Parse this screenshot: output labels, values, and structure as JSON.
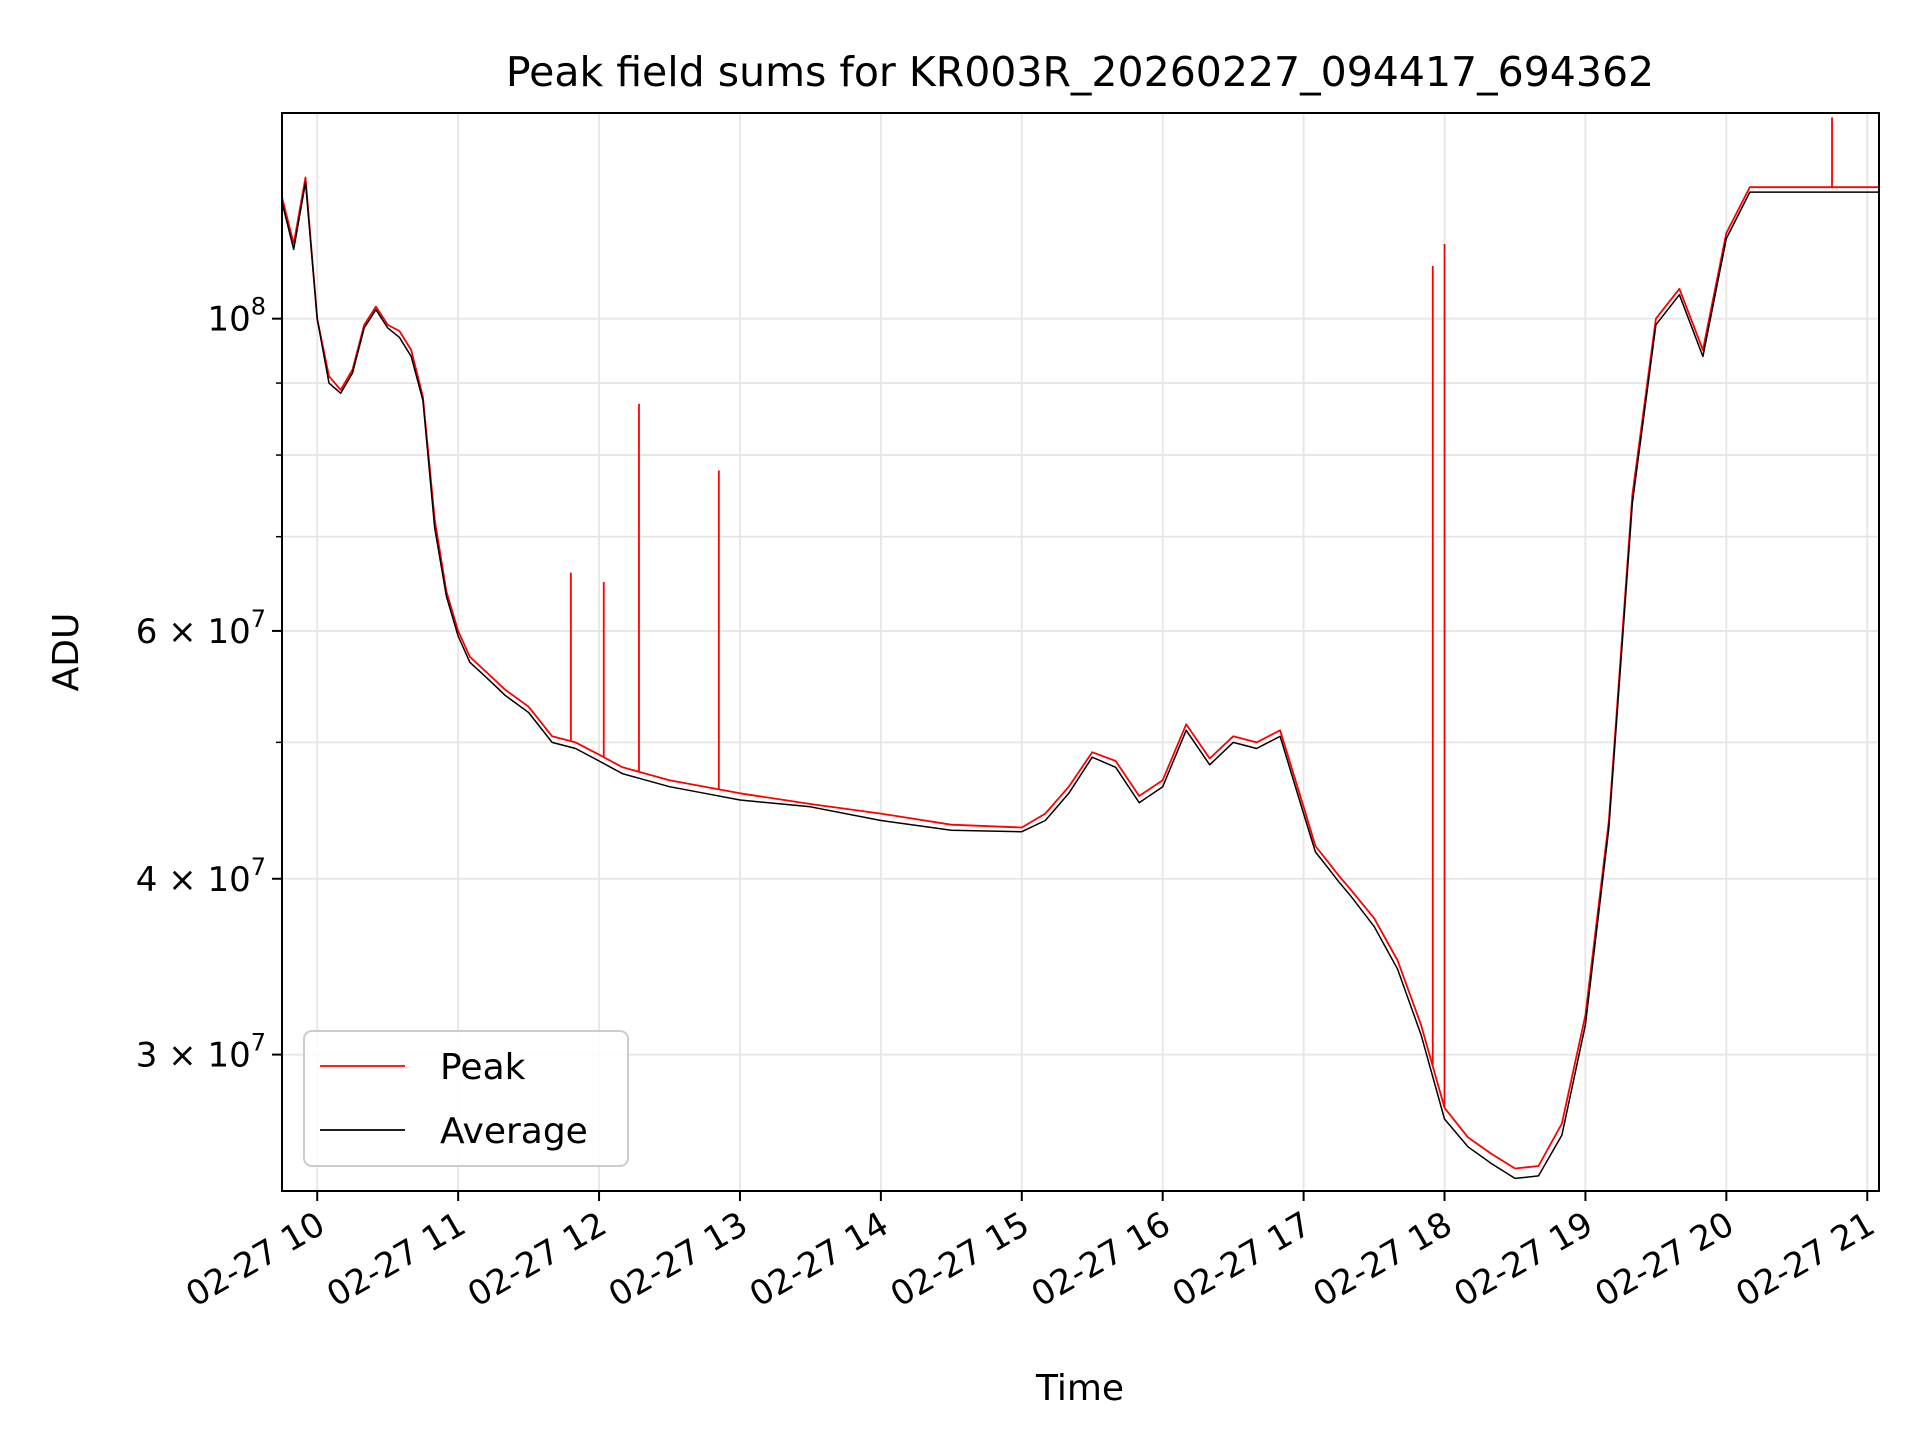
{
  "chart_data": {
    "type": "line",
    "title": "Peak field sums for KR003R_20260227_094417_694362",
    "xlabel": "Time",
    "ylabel": "ADU",
    "yscale": "log",
    "xlim": [
      "2026-02-27 09:45",
      "2026-02-27 21:05"
    ],
    "ylim": [
      24000000,
      140000000
    ],
    "grid": true,
    "legend_position": "lower left",
    "x_tick_labels": [
      "02-27 10",
      "02-27 11",
      "02-27 12",
      "02-27 13",
      "02-27 14",
      "02-27 15",
      "02-27 16",
      "02-27 17",
      "02-27 18",
      "02-27 19",
      "02-27 20",
      "02-27 21"
    ],
    "y_tick_labels": [
      {
        "value": 100000000,
        "mantissa": "",
        "base": "10",
        "exp": "8"
      },
      {
        "value": 60000000,
        "mantissa": "6 × ",
        "base": "10",
        "exp": "7"
      },
      {
        "value": 40000000,
        "mantissa": "4 × ",
        "base": "10",
        "exp": "7"
      },
      {
        "value": 30000000,
        "mantissa": "3 × ",
        "base": "10",
        "exp": "7"
      }
    ],
    "x": [
      "09:45",
      "09:50",
      "09:55",
      "10:00",
      "10:05",
      "10:10",
      "10:15",
      "10:20",
      "10:25",
      "10:30",
      "10:35",
      "10:40",
      "10:45",
      "10:50",
      "10:55",
      "11:00",
      "11:05",
      "11:10",
      "11:15",
      "11:20",
      "11:30",
      "11:40",
      "11:50",
      "12:00",
      "12:10",
      "12:20",
      "12:30",
      "12:45",
      "13:00",
      "13:30",
      "14:00",
      "14:30",
      "15:00",
      "15:10",
      "15:20",
      "15:30",
      "15:40",
      "15:50",
      "16:00",
      "16:10",
      "16:20",
      "16:30",
      "16:40",
      "16:50",
      "17:00",
      "17:05",
      "17:10",
      "17:15",
      "17:20",
      "17:30",
      "17:40",
      "17:50",
      "18:00",
      "18:10",
      "18:20",
      "18:30",
      "18:40",
      "18:50",
      "19:00",
      "19:10",
      "19:20",
      "19:30",
      "19:40",
      "19:50",
      "20:00",
      "20:10",
      "20:20",
      "20:25",
      "20:30",
      "20:35",
      "20:40",
      "20:45",
      "20:50",
      "20:55",
      "21:00",
      "21:05"
    ],
    "series": [
      {
        "name": "Peak",
        "color": "#ff0000",
        "values": [
          122000000,
          113000000,
          126000000,
          100000000,
          91000000,
          89000000,
          92000000,
          99000000,
          102000000,
          99000000,
          98000000,
          95000000,
          88000000,
          72000000,
          64000000,
          60000000,
          57500000,
          56500000,
          55500000,
          54500000,
          53000000,
          50500000,
          50000000,
          49000000,
          48000000,
          47500000,
          47000000,
          46500000,
          46000000,
          45200000,
          44500000,
          43700000,
          43500000,
          44500000,
          46500000,
          49200000,
          48500000,
          45800000,
          47000000,
          51500000,
          48700000,
          50500000,
          50000000,
          51000000,
          45000000,
          42200000,
          41200000,
          40200000,
          39300000,
          37500000,
          35000000,
          31500000,
          27500000,
          26200000,
          25500000,
          24900000,
          25000000,
          26800000,
          32000000,
          44000000,
          75000000,
          100000000,
          105000000,
          95000000,
          115000000,
          124000000,
          124000000,
          124000000,
          124000000,
          124000000,
          124000000,
          124000000,
          124000000,
          124000000,
          124000000,
          124000000
        ]
      },
      {
        "name": "Average",
        "color": "#000000",
        "values": [
          121000000,
          112000000,
          125000000,
          100000000,
          90000000,
          88500000,
          91500000,
          98500000,
          101500000,
          98500000,
          97000000,
          94000000,
          87500000,
          71000000,
          63500000,
          59500000,
          57000000,
          56000000,
          55000000,
          54000000,
          52500000,
          50000000,
          49500000,
          48500000,
          47500000,
          47000000,
          46500000,
          46000000,
          45500000,
          45000000,
          44000000,
          43300000,
          43200000,
          44000000,
          46000000,
          48800000,
          48000000,
          45300000,
          46500000,
          51000000,
          48200000,
          50000000,
          49500000,
          50500000,
          44500000,
          41800000,
          40800000,
          39800000,
          38900000,
          37000000,
          34500000,
          31000000,
          27000000,
          25800000,
          25100000,
          24500000,
          24600000,
          26300000,
          31500000,
          43500000,
          74000000,
          99000000,
          104000000,
          94000000,
          114000000,
          123000000,
          123000000,
          123000000,
          123000000,
          123000000,
          123000000,
          123000000,
          123000000,
          123000000,
          123000000,
          123000000
        ]
      }
    ],
    "annotations_spikes": [
      {
        "time": "11:48",
        "value": 66000000
      },
      {
        "time": "12:02",
        "value": 65000000
      },
      {
        "time": "12:17",
        "value": 87000000
      },
      {
        "time": "12:51",
        "value": 78000000
      },
      {
        "time": "17:55",
        "value": 109000000
      },
      {
        "time": "18:00",
        "value": 113000000
      },
      {
        "time": "20:45",
        "value": 139000000
      }
    ]
  }
}
